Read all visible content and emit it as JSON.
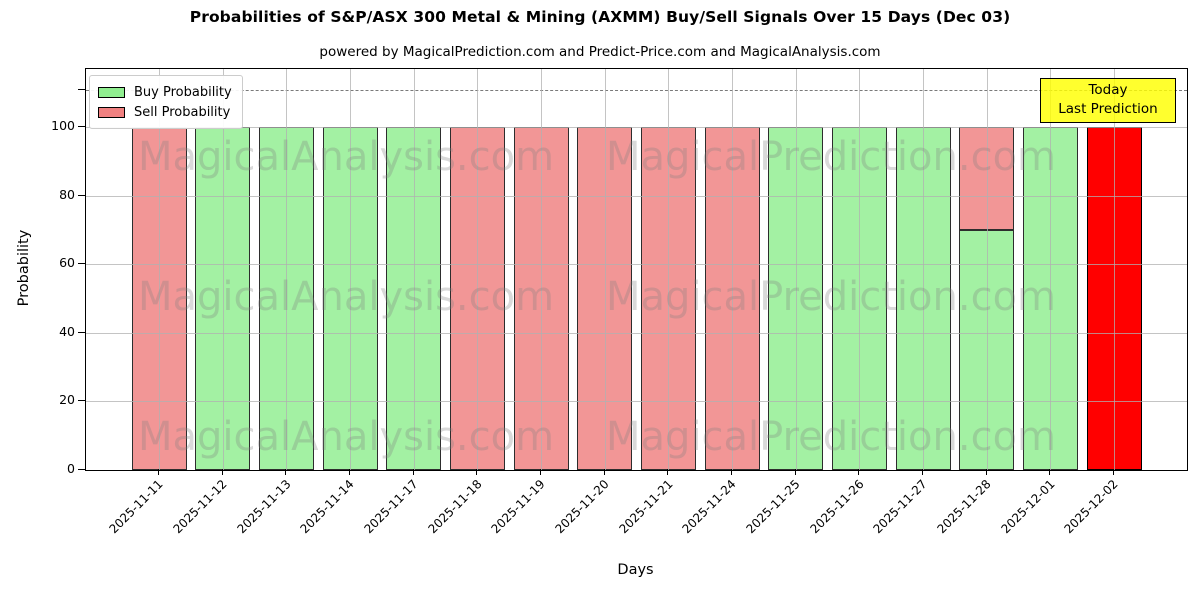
{
  "header": {
    "title": "Probabilities of S&P/ASX 300 Metal & Mining (AXMM) Buy/Sell Signals Over 15 Days (Dec 03)",
    "subtitle": "powered by MagicalPrediction.com and Predict-Price.com and MagicalAnalysis.com"
  },
  "legend": {
    "items": [
      {
        "label": "Buy Probability",
        "color": "#90EE90"
      },
      {
        "label": "Sell Probability",
        "color": "#F08080"
      }
    ]
  },
  "annotation": {
    "line1": "Today",
    "line2": "Last Prediction",
    "bg_color": "#FFFF00"
  },
  "watermarks": [
    "MagicalAnalysis.com",
    "MagicalPrediction.com"
  ],
  "chart_data": {
    "type": "bar",
    "stacked": true,
    "title": "Probabilities of S&P/ASX 300 Metal & Mining (AXMM) Buy/Sell Signals Over 15 Days (Dec 03)",
    "xlabel": "Days",
    "ylabel": "Probability",
    "categories": [
      "2025-11-11",
      "2025-11-12",
      "2025-11-13",
      "2025-11-14",
      "2025-11-17",
      "2025-11-18",
      "2025-11-19",
      "2025-11-20",
      "2025-11-21",
      "2025-11-24",
      "2025-11-25",
      "2025-11-26",
      "2025-11-27",
      "2025-11-28",
      "2025-12-01",
      "2025-12-02"
    ],
    "series": [
      {
        "name": "Buy Probability",
        "color": "#90EE90",
        "values": [
          0,
          100,
          100,
          100,
          100,
          0,
          0,
          0,
          0,
          0,
          100,
          100,
          100,
          70,
          100,
          0
        ]
      },
      {
        "name": "Sell Probability",
        "color": "#F08080",
        "values": [
          100,
          0,
          0,
          0,
          0,
          100,
          100,
          100,
          100,
          100,
          0,
          0,
          0,
          30,
          0,
          100
        ]
      }
    ],
    "today_index": 15,
    "today_color": "#FF0000",
    "yticks": [
      0,
      20,
      40,
      60,
      80,
      100
    ],
    "ylim": [
      0,
      117
    ],
    "dashed_line_y": 111,
    "grid": true,
    "legend_position": "upper left"
  }
}
